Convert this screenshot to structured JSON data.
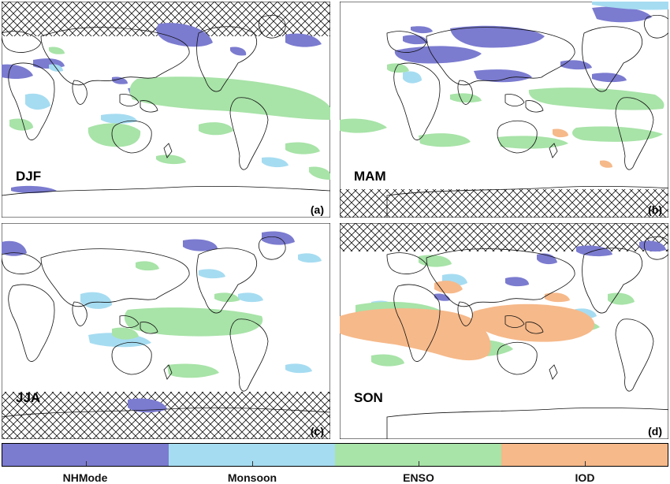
{
  "colors": {
    "nhmode": "#7b7bd0",
    "monsoon": "#a6dcf1",
    "enso": "#a8e3a8",
    "iod": "#f6b98a",
    "land_outline": "#111111",
    "hatch": "#111111"
  },
  "panels": [
    {
      "season": "DJF",
      "tag": "(a)"
    },
    {
      "season": "MAM",
      "tag": "(b)"
    },
    {
      "season": "JJA",
      "tag": "(c)"
    },
    {
      "season": "SON",
      "tag": "(d)"
    }
  ],
  "legend": {
    "items": [
      {
        "label": "NHMode"
      },
      {
        "label": "Monsoon"
      },
      {
        "label": "ENSO"
      },
      {
        "label": "IOD"
      }
    ]
  }
}
